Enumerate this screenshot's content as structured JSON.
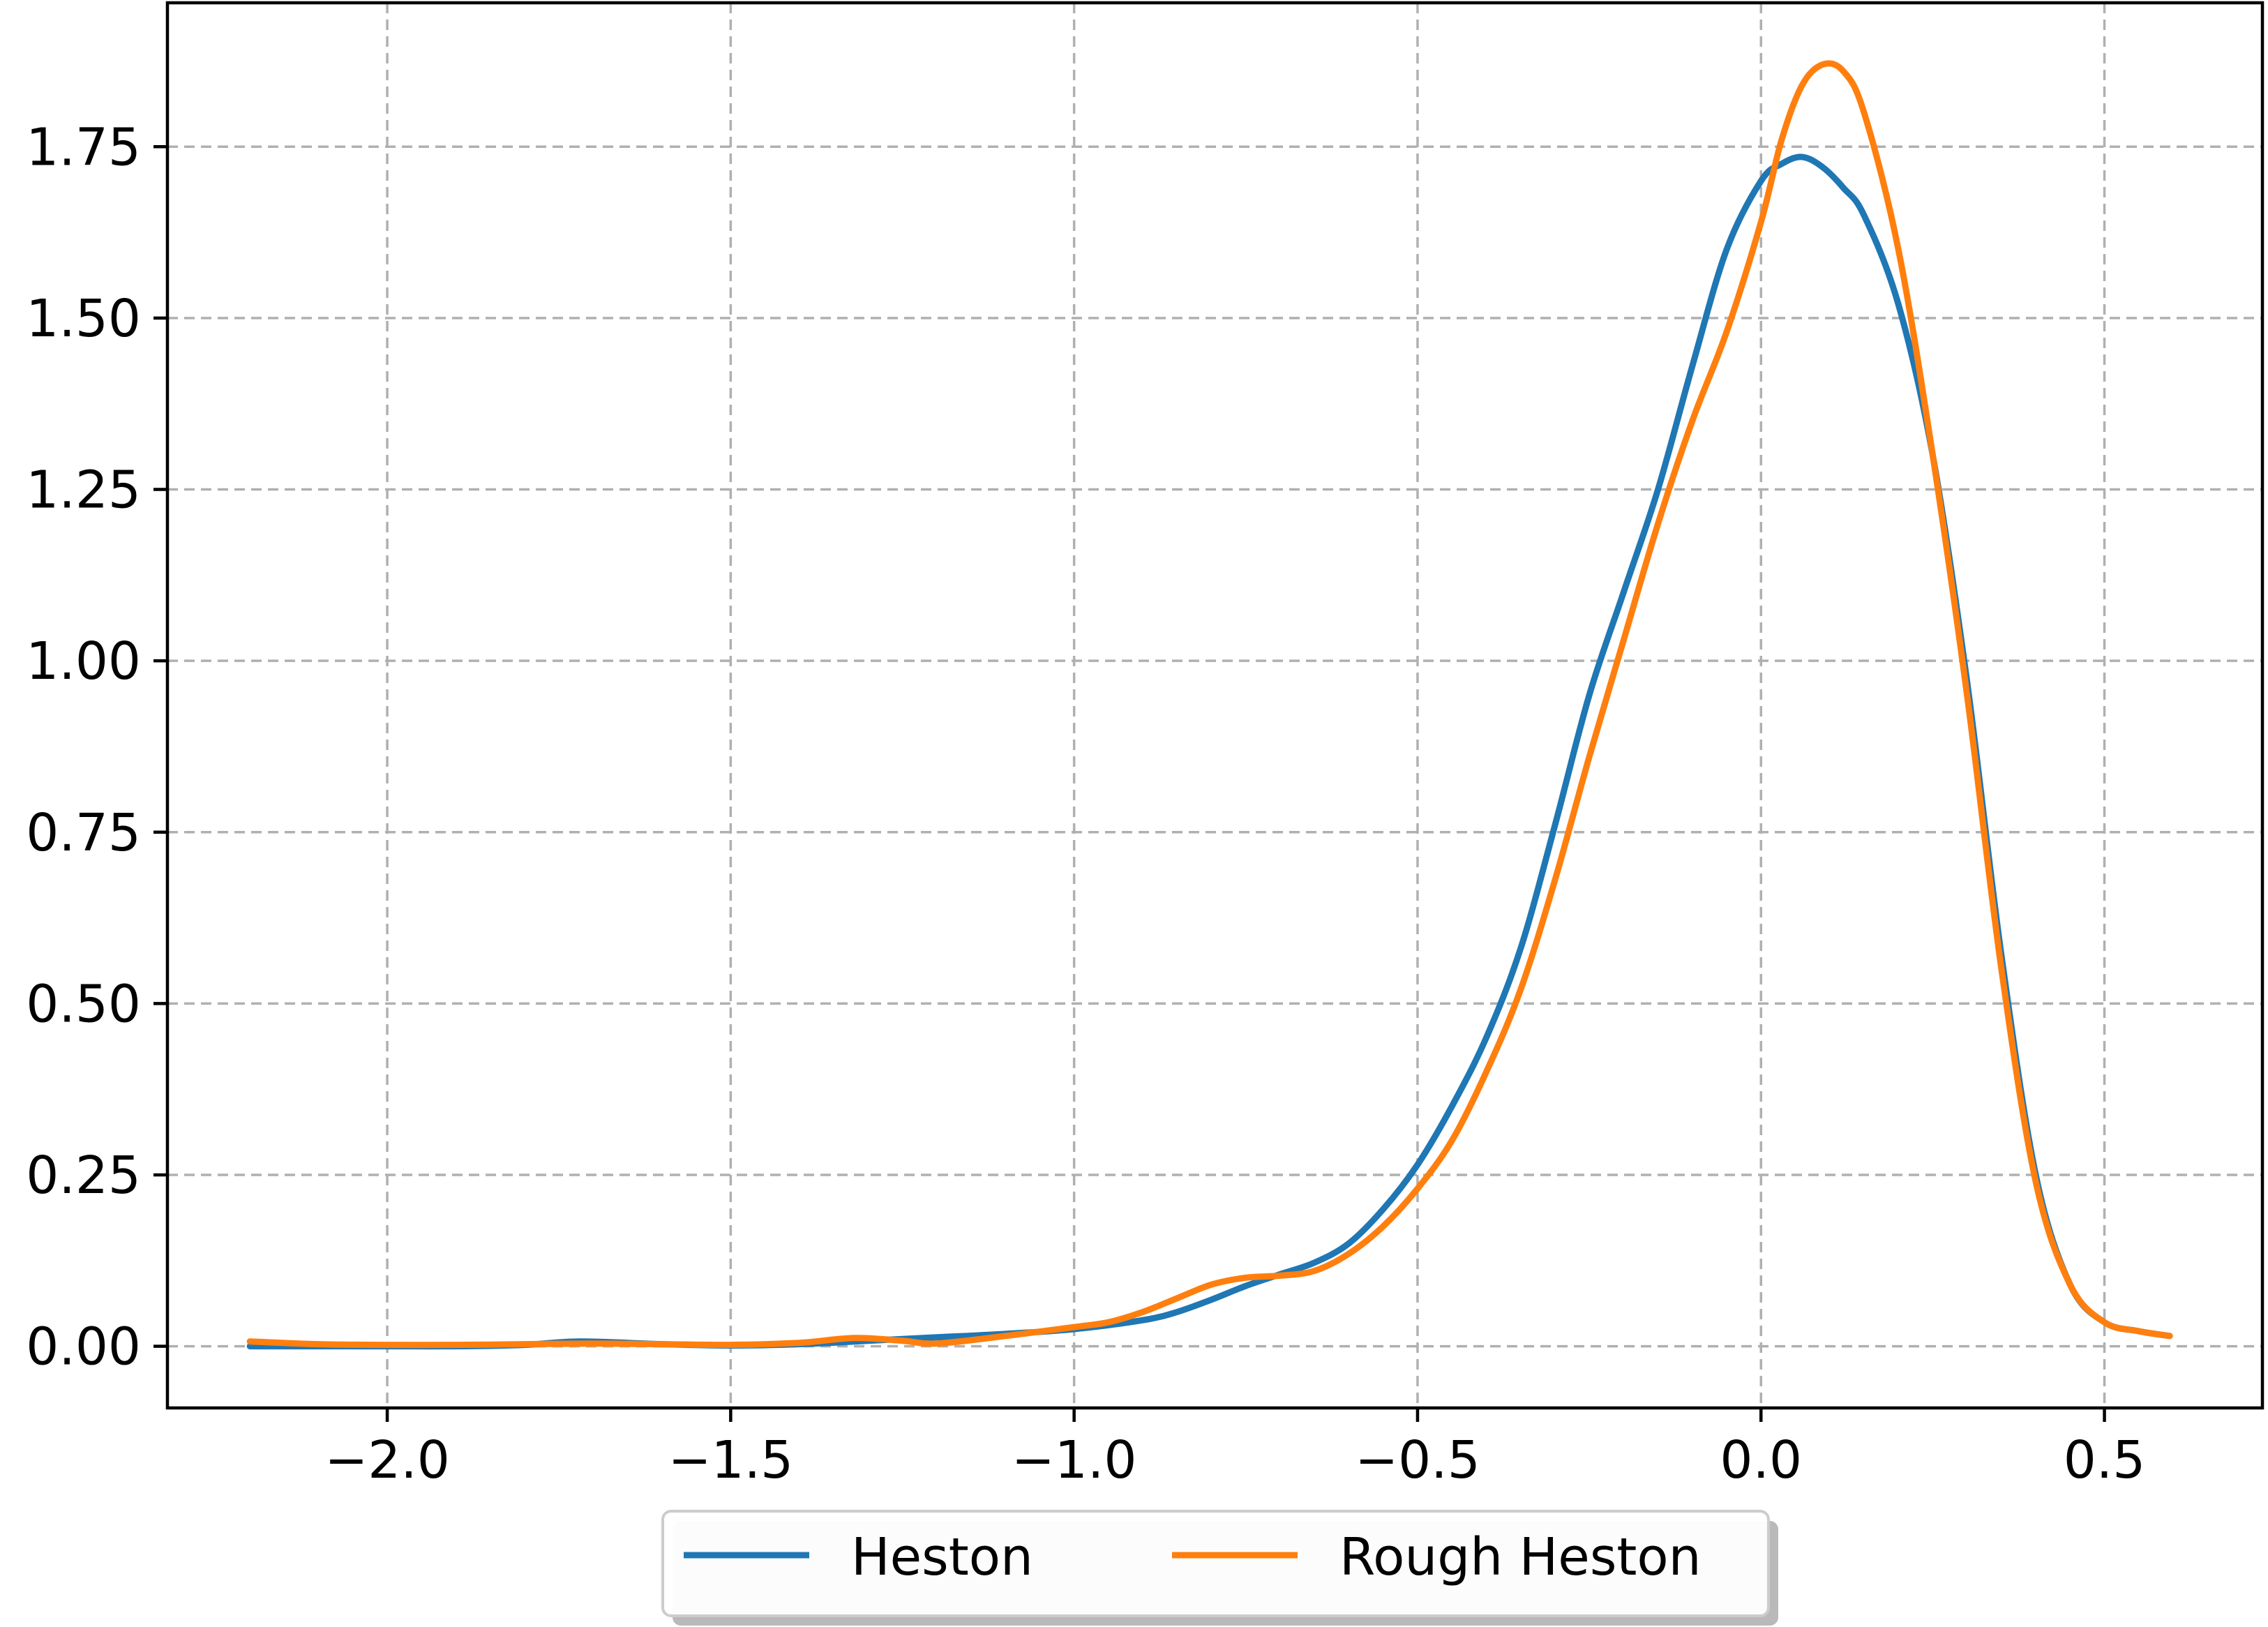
{
  "chart_data": {
    "type": "line",
    "title": "",
    "xlabel": "",
    "ylabel": "",
    "xlim": [
      -2.32,
      0.73
    ],
    "ylim": [
      -0.09,
      1.96
    ],
    "grid": true,
    "legend_placement": "bottom-center, below axes",
    "xticks": [
      -2.0,
      -1.5,
      -1.0,
      -0.5,
      0.0,
      0.5
    ],
    "xtick_labels": [
      "−2.0",
      "−1.5",
      "−1.0",
      "−0.5",
      "0.0",
      "0.5"
    ],
    "yticks": [
      0.0,
      0.25,
      0.5,
      0.75,
      1.0,
      1.25,
      1.5,
      1.75
    ],
    "ytick_labels": [
      "0.00",
      "0.25",
      "0.50",
      "0.75",
      "1.00",
      "1.25",
      "1.50",
      "1.75"
    ],
    "series": [
      {
        "name": "Heston",
        "color": "#1f77b4",
        "x": [
          -2.2,
          -2.1,
          -2.0,
          -1.9,
          -1.8,
          -1.72,
          -1.6,
          -1.5,
          -1.4,
          -1.3,
          -1.2,
          -1.1,
          -1.0,
          -0.9,
          -0.85,
          -0.8,
          -0.75,
          -0.7,
          -0.65,
          -0.6,
          -0.55,
          -0.5,
          -0.45,
          -0.4,
          -0.35,
          -0.3,
          -0.25,
          -0.2,
          -0.15,
          -0.1,
          -0.05,
          0.0,
          0.03,
          0.06,
          0.09,
          0.12,
          0.15,
          0.2,
          0.25,
          0.3,
          0.35,
          0.4,
          0.45,
          0.5,
          0.55,
          0.595
        ],
        "values": [
          0.0,
          0.0,
          0.0,
          0.0,
          0.002,
          0.007,
          0.003,
          0.001,
          0.003,
          0.008,
          0.013,
          0.018,
          0.025,
          0.038,
          0.05,
          0.068,
          0.088,
          0.105,
          0.122,
          0.15,
          0.2,
          0.265,
          0.35,
          0.45,
          0.58,
          0.76,
          0.95,
          1.1,
          1.25,
          1.43,
          1.6,
          1.7,
          1.725,
          1.735,
          1.72,
          1.69,
          1.65,
          1.52,
          1.3,
          0.97,
          0.57,
          0.25,
          0.09,
          0.035,
          0.022,
          0.015
        ]
      },
      {
        "name": "Rough Heston",
        "color": "#ff7f0e",
        "x": [
          -2.2,
          -2.1,
          -2.0,
          -1.9,
          -1.8,
          -1.7,
          -1.6,
          -1.5,
          -1.4,
          -1.32,
          -1.25,
          -1.2,
          -1.1,
          -1.0,
          -0.95,
          -0.9,
          -0.85,
          -0.8,
          -0.75,
          -0.7,
          -0.65,
          -0.6,
          -0.55,
          -0.5,
          -0.45,
          -0.4,
          -0.35,
          -0.3,
          -0.25,
          -0.2,
          -0.15,
          -0.1,
          -0.05,
          0.0,
          0.03,
          0.06,
          0.09,
          0.12,
          0.15,
          0.2,
          0.25,
          0.3,
          0.35,
          0.4,
          0.45,
          0.5,
          0.55,
          0.595
        ],
        "values": [
          0.007,
          0.003,
          0.002,
          0.002,
          0.003,
          0.004,
          0.003,
          0.002,
          0.005,
          0.012,
          0.008,
          0.004,
          0.015,
          0.028,
          0.035,
          0.05,
          0.07,
          0.09,
          0.1,
          0.103,
          0.11,
          0.135,
          0.175,
          0.23,
          0.3,
          0.4,
          0.52,
          0.68,
          0.86,
          1.03,
          1.2,
          1.35,
          1.48,
          1.64,
          1.76,
          1.84,
          1.87,
          1.86,
          1.8,
          1.6,
          1.3,
          0.95,
          0.55,
          0.24,
          0.09,
          0.035,
          0.022,
          0.015
        ]
      }
    ]
  },
  "legend": {
    "items": [
      {
        "label": "Heston",
        "color": "#1f77b4"
      },
      {
        "label": "Rough Heston",
        "color": "#ff7f0e"
      }
    ]
  }
}
